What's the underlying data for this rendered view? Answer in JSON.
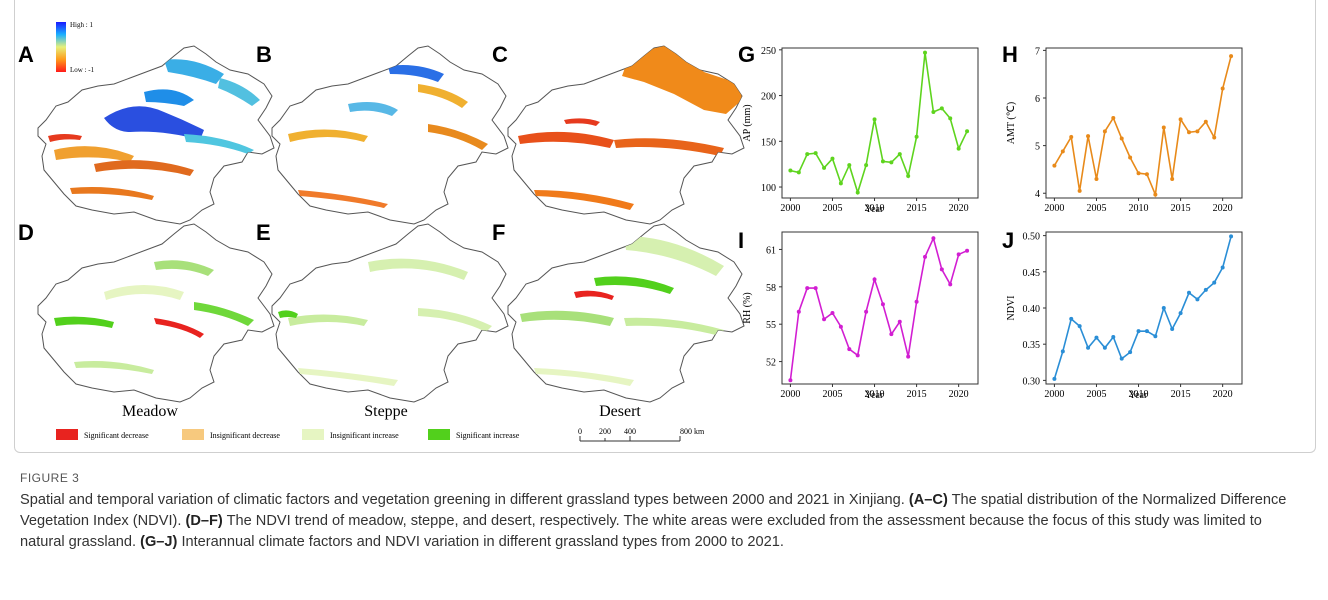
{
  "figure": {
    "panel_letters": [
      "A",
      "B",
      "C",
      "D",
      "E",
      "F",
      "G",
      "H",
      "I",
      "J"
    ],
    "map_legend": {
      "high": "High : 1",
      "low": "Low : -1"
    },
    "grassland_types": [
      "Meadow",
      "Steppe",
      "Desert"
    ],
    "trend_legend": [
      "Significant decrease",
      "Insignificant decrease",
      "Insignificant increase",
      "Significant increase"
    ],
    "trend_colors": [
      "#e8231f",
      "#f7c97e",
      "#e6f5c2",
      "#52d01c"
    ],
    "scale_bar": {
      "ticks": [
        "0",
        "200",
        "400",
        "800 km"
      ]
    }
  },
  "caption": {
    "label": "FIGURE 3",
    "intro": "Spatial and temporal variation of climatic factors and vegetation greening in different grassland types between 2000 and 2021 in Xinjiang. ",
    "ref1": "(A–C)",
    "text1": " The spatial distribution of the Normalized Difference Vegetation Index (NDVI). ",
    "ref2": "(D–F)",
    "text2": " The NDVI trend of meadow, steppe, and desert, respectively. The white areas were excluded from the assessment because the focus of this study was limited to natural grassland. ",
    "ref3": "(G–J)",
    "text3": " Interannual climate factors and NDVI variation in different grassland types from 2000 to 2021."
  },
  "chart_data": [
    {
      "type": "line",
      "panel": "G",
      "xlabel": "Year",
      "ylabel": "AP (mm)",
      "color": "#5ed41e",
      "x": [
        2000,
        2001,
        2002,
        2003,
        2004,
        2005,
        2006,
        2007,
        2008,
        2009,
        2010,
        2011,
        2012,
        2013,
        2014,
        2015,
        2016,
        2017,
        2018,
        2019,
        2020,
        2021
      ],
      "y": [
        118,
        116,
        136,
        137,
        121,
        131,
        104,
        124,
        94,
        124,
        174,
        128,
        127,
        136,
        112,
        155,
        247,
        182,
        186,
        175,
        142,
        161
      ],
      "ylim": [
        88,
        252
      ],
      "yticks": [
        100,
        150,
        200,
        250
      ],
      "xticks": [
        2000,
        2005,
        2010,
        2015,
        2020
      ]
    },
    {
      "type": "line",
      "panel": "H",
      "xlabel": "",
      "ylabel": "AMT (℃)",
      "color": "#e88a1a",
      "x": [
        2000,
        2001,
        2002,
        2003,
        2004,
        2005,
        2006,
        2007,
        2008,
        2009,
        2010,
        2011,
        2012,
        2013,
        2014,
        2015,
        2016,
        2017,
        2018,
        2019,
        2020,
        2021
      ],
      "y": [
        4.58,
        4.88,
        5.18,
        4.05,
        5.2,
        4.3,
        5.3,
        5.58,
        5.15,
        4.75,
        4.42,
        4.4,
        3.97,
        5.38,
        4.3,
        5.55,
        5.28,
        5.3,
        5.5,
        5.17,
        6.2,
        6.88
      ],
      "ylim": [
        3.9,
        7.05
      ],
      "yticks": [
        4,
        5,
        6,
        7
      ],
      "xticks": [
        2000,
        2005,
        2010,
        2015,
        2020
      ]
    },
    {
      "type": "line",
      "panel": "I",
      "xlabel": "Year",
      "ylabel": "RH (%)",
      "color": "#d21ed2",
      "x": [
        2000,
        2001,
        2002,
        2003,
        2004,
        2005,
        2006,
        2007,
        2008,
        2009,
        2010,
        2011,
        2012,
        2013,
        2014,
        2015,
        2016,
        2017,
        2018,
        2019,
        2020,
        2021
      ],
      "y": [
        50.5,
        56.0,
        57.9,
        57.9,
        55.4,
        55.9,
        54.8,
        53.0,
        52.5,
        56.0,
        58.6,
        56.6,
        54.2,
        55.2,
        52.4,
        56.8,
        60.4,
        61.9,
        59.4,
        58.2,
        60.6,
        60.9
      ],
      "ylim": [
        50.2,
        62.4
      ],
      "yticks": [
        52,
        55,
        58,
        61
      ],
      "xticks": [
        2000,
        2005,
        2010,
        2015,
        2020
      ]
    },
    {
      "type": "line",
      "panel": "J",
      "xlabel": "Year",
      "ylabel": "NDVI",
      "color": "#2a8ed6",
      "x": [
        2000,
        2001,
        2002,
        2003,
        2004,
        2005,
        2006,
        2007,
        2008,
        2009,
        2010,
        2011,
        2012,
        2013,
        2014,
        2015,
        2016,
        2017,
        2018,
        2019,
        2020,
        2021
      ],
      "y": [
        0.302,
        0.34,
        0.385,
        0.375,
        0.345,
        0.359,
        0.345,
        0.36,
        0.33,
        0.339,
        0.368,
        0.368,
        0.361,
        0.4,
        0.371,
        0.393,
        0.421,
        0.412,
        0.425,
        0.435,
        0.456,
        0.499
      ],
      "ylim": [
        0.295,
        0.505
      ],
      "yticks": [
        0.3,
        0.35,
        0.4,
        0.45,
        0.5
      ],
      "xticks": [
        2000,
        2005,
        2010,
        2015,
        2020
      ]
    }
  ]
}
